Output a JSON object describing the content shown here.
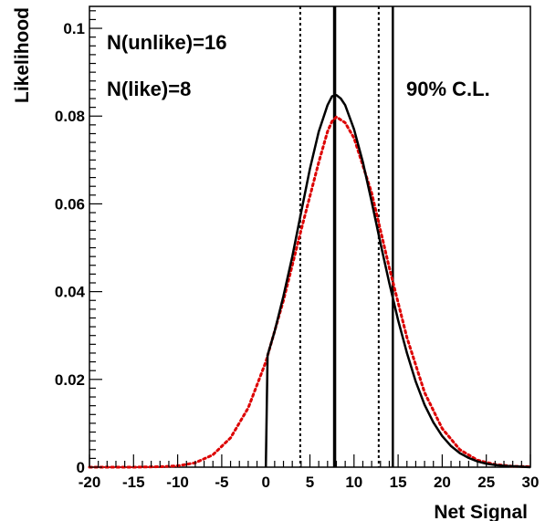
{
  "chart_data": {
    "type": "line",
    "title": "",
    "xlabel": "Net Signal",
    "ylabel": "Likelihood",
    "xlim": [
      -20,
      30
    ],
    "ylim": [
      0,
      0.105
    ],
    "grid": false,
    "x_ticks": [
      "-20",
      "-15",
      "-10",
      "-5",
      "0",
      "5",
      "10",
      "15",
      "20",
      "25",
      "30"
    ],
    "y_ticks": [
      "0",
      "0.02",
      "0.04",
      "0.06",
      "0.08",
      "0.1"
    ],
    "annotations": {
      "unlike": "N(unlike)=16",
      "like": "N(like)=8",
      "cl": "90% C.L."
    },
    "series": [
      {
        "style": "solid",
        "color": "#000000",
        "x": [
          0.0,
          0.2,
          1,
          2,
          3,
          4,
          5,
          6,
          7,
          7.5,
          8,
          8.5,
          9,
          10,
          11,
          12,
          13,
          14,
          15,
          16,
          17,
          18,
          19,
          20,
          21,
          22,
          23,
          24,
          25,
          26,
          27,
          28,
          29,
          30
        ],
        "y": [
          0.0,
          0.0255,
          0.031,
          0.039,
          0.048,
          0.058,
          0.068,
          0.0765,
          0.0825,
          0.0845,
          0.0848,
          0.084,
          0.0825,
          0.077,
          0.0695,
          0.0605,
          0.051,
          0.042,
          0.0335,
          0.026,
          0.0195,
          0.0142,
          0.0102,
          0.0071,
          0.0048,
          0.0032,
          0.0021,
          0.0013,
          0.0008,
          0.0005,
          0.0003,
          0.0002,
          0.0001,
          0.0
        ]
      },
      {
        "style": "dotted",
        "color": "#dd0000",
        "x": [
          -20,
          -15,
          -12,
          -10,
          -8,
          -6,
          -4,
          -2,
          0,
          2,
          4,
          6,
          7,
          7.5,
          8,
          9,
          10,
          12,
          14,
          16,
          18,
          20,
          22,
          24,
          26,
          28,
          30
        ],
        "y": [
          0.0,
          0.0,
          0.0001,
          0.0003,
          0.001,
          0.0028,
          0.0067,
          0.0135,
          0.024,
          0.038,
          0.054,
          0.0695,
          0.0765,
          0.0788,
          0.0798,
          0.0785,
          0.075,
          0.0625,
          0.0455,
          0.0295,
          0.017,
          0.0088,
          0.004,
          0.0016,
          0.0006,
          0.0002,
          0.0001
        ]
      }
    ],
    "vertical_lines": [
      {
        "x": 3.9,
        "style": "dotted",
        "width": 2
      },
      {
        "x": 7.8,
        "style": "solid",
        "width": 3.5
      },
      {
        "x": 12.8,
        "style": "dotted",
        "width": 2
      },
      {
        "x": 14.4,
        "style": "solid",
        "width": 2.5
      }
    ]
  }
}
